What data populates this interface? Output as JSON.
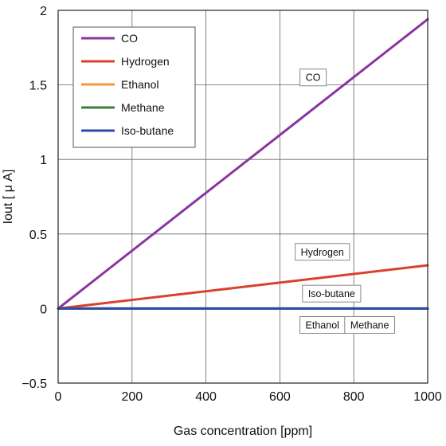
{
  "chart_data": {
    "type": "line",
    "xlabel": "Gas concentration [ppm]",
    "ylabel": "Iout [ μ A]",
    "xlim": [
      0,
      1000
    ],
    "ylim": [
      -0.5,
      2
    ],
    "x_ticks": [
      "0",
      "200",
      "400",
      "600",
      "800",
      "1000"
    ],
    "y_ticks": [
      "−0.5",
      "0",
      "0.5",
      "1",
      "1.5",
      "2"
    ],
    "grid": true,
    "legend_position": "top-left",
    "series": [
      {
        "name": "CO",
        "color": "#8a35a0",
        "x": [
          0,
          1000
        ],
        "y": [
          0,
          1.94
        ]
      },
      {
        "name": "Hydrogen",
        "color": "#d9402e",
        "x": [
          0,
          1000
        ],
        "y": [
          0,
          0.29
        ]
      },
      {
        "name": "Ethanol",
        "color": "#f29a35",
        "x": [
          0,
          1000
        ],
        "y": [
          0,
          0
        ]
      },
      {
        "name": "Methane",
        "color": "#3a7d3a",
        "x": [
          0,
          1000
        ],
        "y": [
          0,
          0
        ]
      },
      {
        "name": "Iso-butane",
        "color": "#2c4aa8",
        "x": [
          0,
          1000
        ],
        "y": [
          0,
          0
        ]
      }
    ],
    "annotations": [
      {
        "text": "CO",
        "x": 690,
        "y": 1.55
      },
      {
        "text": "Hydrogen",
        "x": 715,
        "y": 0.38
      },
      {
        "text": "Iso-butane",
        "x": 740,
        "y": 0.1
      },
      {
        "text": "Ethanol",
        "x": 715,
        "y": -0.11
      },
      {
        "text": "Methane",
        "x": 843,
        "y": -0.11
      }
    ]
  }
}
